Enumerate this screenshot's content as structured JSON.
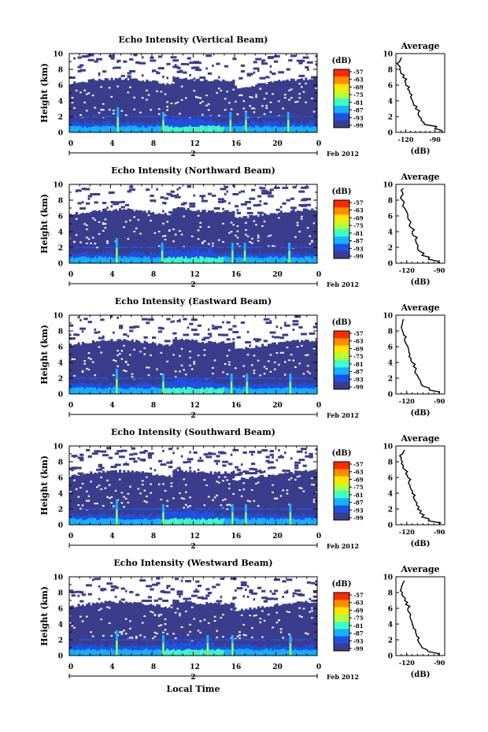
{
  "chart_data": [
    {
      "type": "heatmap",
      "title": "Echo Intensity (Vertical Beam)",
      "ylabel": "Height (km)",
      "ylim": [
        0,
        10
      ],
      "yticks": [
        "0",
        "2",
        "4",
        "6",
        "8",
        "10"
      ],
      "xlim": [
        0,
        24
      ],
      "xticks": [
        "0",
        "4",
        "8",
        "12",
        "16",
        "20",
        "0"
      ],
      "date_day": "2",
      "date_month": "Feb 2012",
      "colorbar": {
        "unit": "(dB)",
        "labels": [
          "-57",
          "-63",
          "-69",
          "-75",
          "-81",
          "-87",
          "-93",
          "-99"
        ]
      },
      "spikes": [
        4.7,
        9.1,
        15.6,
        17.1,
        21.2
      ],
      "average": {
        "title": "Average",
        "xlabel": "(dB)",
        "xticks": [
          "-120",
          "-90"
        ],
        "xlim": [
          -130,
          -80
        ],
        "profile_height": [
          0,
          0.5,
          1,
          1.5,
          2,
          2.5,
          3,
          3.5,
          4,
          4.5,
          5,
          5.5,
          6,
          6.5,
          7,
          7.5,
          8,
          8.5,
          9,
          9.5
        ],
        "profile_db": [
          -82,
          -90,
          -101,
          -104,
          -106,
          -107,
          -110,
          -112,
          -113,
          -115,
          -116,
          -118,
          -120,
          -121,
          -123,
          -125,
          -126,
          -127,
          -126,
          -124
        ]
      }
    },
    {
      "type": "heatmap",
      "title": "Echo Intensity (Northward Beam)",
      "ylabel": "Height (km)",
      "ylim": [
        0,
        10
      ],
      "yticks": [
        "0",
        "2",
        "4",
        "6",
        "8",
        "10"
      ],
      "xlim": [
        0,
        24
      ],
      "xticks": [
        "0",
        "4",
        "8",
        "12",
        "16",
        "20",
        "0"
      ],
      "date_day": "2",
      "date_month": "Feb 2012",
      "colorbar": {
        "unit": "(dB)",
        "labels": [
          "-57",
          "-63",
          "-69",
          "-75",
          "-81",
          "-87",
          "-93",
          "-99"
        ]
      },
      "spikes": [
        4.6,
        9.0,
        15.8,
        17.0,
        21.3
      ],
      "average": {
        "title": "Average",
        "xlabel": "(dB)",
        "xticks": [
          "-120",
          "-90"
        ],
        "xlim": [
          -130,
          -85
        ],
        "profile_height": [
          0,
          0.5,
          1,
          1.5,
          2,
          2.5,
          3,
          3.5,
          4,
          4.5,
          5,
          5.5,
          6,
          6.5,
          7,
          7.5,
          8,
          8.5,
          9,
          9.5
        ],
        "profile_db": [
          -90,
          -100,
          -106,
          -108,
          -110,
          -111,
          -112,
          -114,
          -115,
          -116,
          -117,
          -118,
          -119,
          -120,
          -122,
          -123,
          -124,
          -125,
          -124,
          -123
        ]
      }
    },
    {
      "type": "heatmap",
      "title": "Echo Intensity (Eastward Beam)",
      "ylabel": "Height (km)",
      "ylim": [
        0,
        10
      ],
      "yticks": [
        "0",
        "2",
        "4",
        "6",
        "8",
        "10"
      ],
      "xlim": [
        0,
        24
      ],
      "xticks": [
        "0",
        "4",
        "8",
        "12",
        "16",
        "20",
        "0"
      ],
      "date_day": "2",
      "date_month": "Feb 2012",
      "colorbar": {
        "unit": "(dB)",
        "labels": [
          "-57",
          "-63",
          "-69",
          "-75",
          "-81",
          "-87",
          "-93",
          "-99"
        ]
      },
      "spikes": [
        4.6,
        9.1,
        15.7,
        17.2,
        21.4
      ],
      "average": {
        "title": "Average",
        "xlabel": "(dB)",
        "xticks": [
          "-120",
          "-90"
        ],
        "xlim": [
          -130,
          -85
        ],
        "profile_height": [
          0,
          0.5,
          1,
          1.5,
          2,
          2.5,
          3,
          3.5,
          4,
          4.5,
          5,
          5.5,
          6,
          6.5,
          7,
          7.5,
          8,
          8.5,
          9,
          9.5
        ],
        "profile_db": [
          -90,
          -99,
          -105,
          -107,
          -109,
          -111,
          -112,
          -114,
          -115,
          -116,
          -117,
          -118,
          -119,
          -121,
          -122,
          -123,
          -124,
          -125,
          -124,
          -123
        ]
      }
    },
    {
      "type": "heatmap",
      "title": "Echo Intensity (Southward Beam)",
      "ylabel": "Height (km)",
      "ylim": [
        0,
        10
      ],
      "yticks": [
        "0",
        "2",
        "4",
        "6",
        "8",
        "10"
      ],
      "xlim": [
        0,
        24
      ],
      "xticks": [
        "0",
        "4",
        "8",
        "12",
        "16",
        "20",
        "0"
      ],
      "date_day": "2",
      "date_month": "Feb 2012",
      "colorbar": {
        "unit": "(dB)",
        "labels": [
          "-57",
          "-63",
          "-69",
          "-75",
          "-81",
          "-87",
          "-93",
          "-99"
        ]
      },
      "spikes": [
        4.6,
        9.1,
        15.8,
        17.1,
        21.4
      ],
      "average": {
        "title": "Average",
        "xlabel": "(dB)",
        "xticks": [
          "-120",
          "-90"
        ],
        "xlim": [
          -130,
          -85
        ],
        "profile_height": [
          0,
          0.5,
          1,
          1.5,
          2,
          2.5,
          3,
          3.5,
          4,
          4.5,
          5,
          5.5,
          6,
          6.5,
          7,
          7.5,
          8,
          8.5,
          9,
          9.5
        ],
        "profile_db": [
          -90,
          -100,
          -106,
          -108,
          -110,
          -111,
          -112,
          -114,
          -115,
          -116,
          -117,
          -118,
          -119,
          -121,
          -122,
          -123,
          -124,
          -125,
          -124,
          -122
        ]
      }
    },
    {
      "type": "heatmap",
      "title": "Echo Intensity (Westward Beam)",
      "ylabel": "Height (km)",
      "ylim": [
        0,
        10
      ],
      "yticks": [
        "0",
        "2",
        "4",
        "6",
        "8",
        "10"
      ],
      "xlim": [
        0,
        24
      ],
      "xticks": [
        "0",
        "4",
        "8",
        "12",
        "16",
        "20",
        "0"
      ],
      "date_day": "2",
      "date_month": "Feb 2012",
      "xlabel": "Local Time",
      "colorbar": {
        "unit": "(dB)",
        "labels": [
          "-57",
          "-63",
          "-69",
          "-75",
          "-81",
          "-87",
          "-93",
          "-99"
        ]
      },
      "spikes": [
        4.6,
        9.1,
        13.4,
        15.8,
        21.4
      ],
      "average": {
        "title": "Average",
        "xlabel": "(dB)",
        "xticks": [
          "-120",
          "-90"
        ],
        "xlim": [
          -130,
          -85
        ],
        "profile_height": [
          0,
          0.5,
          1,
          1.5,
          2,
          2.5,
          3,
          3.5,
          4,
          4.5,
          5,
          5.5,
          6,
          6.5,
          7,
          7.5,
          8,
          8.5,
          9,
          9.5
        ],
        "profile_db": [
          -90,
          -100,
          -106,
          -108,
          -110,
          -111,
          -112,
          -114,
          -115,
          -116,
          -117,
          -118,
          -119,
          -121,
          -122,
          -123,
          -124,
          -125,
          -124,
          -122
        ]
      }
    }
  ],
  "colors": {
    "background": "#ffffff",
    "low_echo": "#3b3d8c",
    "colorscale": [
      "#ff2a00",
      "#ff8c00",
      "#ffe600",
      "#b4ff3c",
      "#3cffc8",
      "#14b4ff",
      "#2050e6",
      "#3b3d8c"
    ]
  }
}
